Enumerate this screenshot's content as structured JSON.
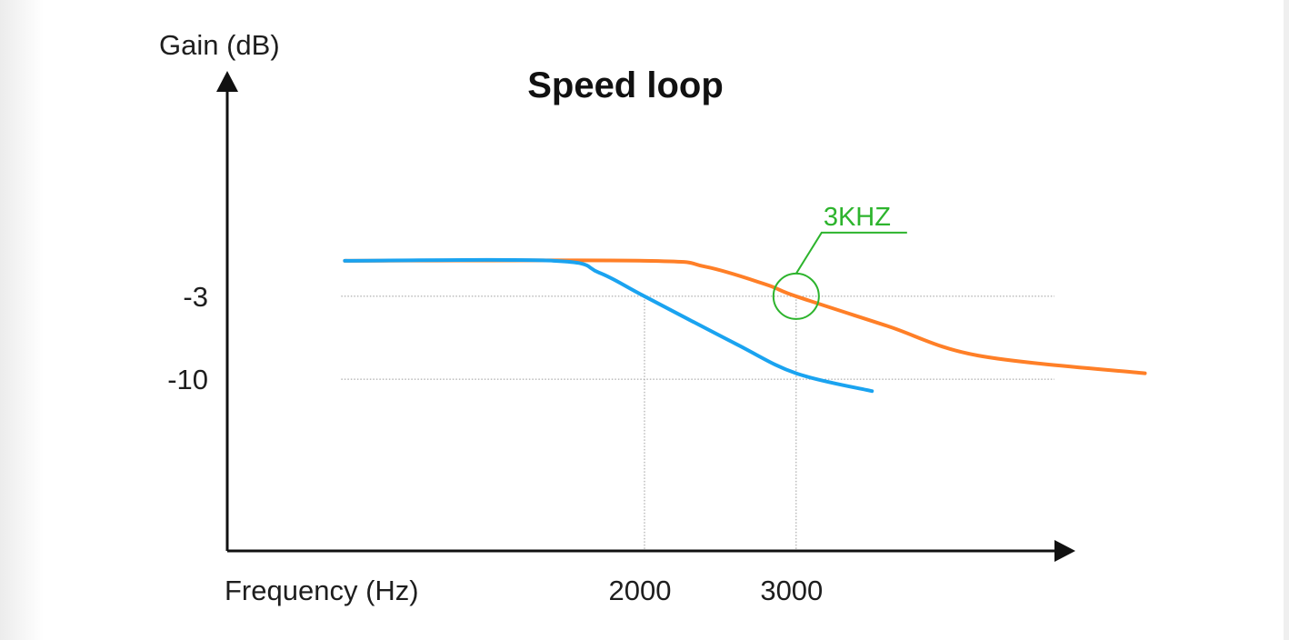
{
  "chart_data": {
    "type": "line",
    "title": "Speed loop",
    "ylabel": "Gain (dB)",
    "xlabel": "Frequency (Hz)",
    "y_ticks": [
      {
        "value": -3,
        "label": "-3"
      },
      {
        "value": -10,
        "label": "-10"
      }
    ],
    "x_ticks": [
      {
        "value": 2000,
        "label": "2000"
      },
      {
        "value": 3000,
        "label": "3000"
      }
    ],
    "ylim": [
      -32,
      22
    ],
    "xlim": [
      -2250,
      6250
    ],
    "grid": false,
    "series": [
      {
        "color": "#ff7f27",
        "x": [
          0,
          2000,
          2400,
          2800,
          3000,
          3600,
          4200,
          5300
        ],
        "y": [
          0,
          0,
          -0.5,
          -2.0,
          -3.0,
          -5.5,
          -8.0,
          -9.5
        ]
      },
      {
        "color": "#1aa3f0",
        "x": [
          0,
          1400,
          1700,
          2000,
          2600,
          3000,
          3500
        ],
        "y": [
          0,
          0,
          -1.0,
          -3.0,
          -7.0,
          -9.5,
          -11.0
        ]
      }
    ],
    "annotations": [
      {
        "text": "3KHZ",
        "x": 3000,
        "y": -3,
        "color": "#2db42d"
      }
    ]
  }
}
